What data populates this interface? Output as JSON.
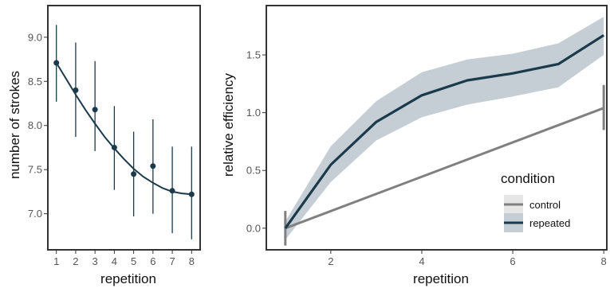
{
  "chart_data": [
    {
      "type": "scatter",
      "xlabel": "repetition",
      "ylabel": "number of strokes",
      "x_ticks": [
        "1",
        "2",
        "3",
        "4",
        "5",
        "6",
        "7",
        "8"
      ],
      "y_ticks": [
        "7.0",
        "7.5",
        "8.0",
        "8.5",
        "9.0"
      ],
      "xlim": [
        0.6,
        8.4
      ],
      "ylim": [
        6.6,
        9.35
      ],
      "points": [
        {
          "x": 1,
          "y": 8.71,
          "ymin": 8.27,
          "ymax": 9.14
        },
        {
          "x": 2,
          "y": 8.4,
          "ymin": 7.87,
          "ymax": 8.94
        },
        {
          "x": 3,
          "y": 8.18,
          "ymin": 7.71,
          "ymax": 8.73
        },
        {
          "x": 4,
          "y": 7.75,
          "ymin": 7.27,
          "ymax": 8.22
        },
        {
          "x": 5,
          "y": 7.45,
          "ymin": 6.97,
          "ymax": 7.93
        },
        {
          "x": 6,
          "y": 7.54,
          "ymin": 7.0,
          "ymax": 8.07
        },
        {
          "x": 7,
          "y": 7.26,
          "ymin": 6.78,
          "ymax": 7.76
        },
        {
          "x": 8,
          "y": 7.22,
          "ymin": 6.71,
          "ymax": 7.76
        }
      ],
      "fit_curve": [
        {
          "x": 1,
          "y": 8.71
        },
        {
          "x": 1.5,
          "y": 8.53
        },
        {
          "x": 2,
          "y": 8.35
        },
        {
          "x": 2.5,
          "y": 8.18
        },
        {
          "x": 3,
          "y": 8.02
        },
        {
          "x": 3.5,
          "y": 7.87
        },
        {
          "x": 4,
          "y": 7.74
        },
        {
          "x": 4.5,
          "y": 7.62
        },
        {
          "x": 5,
          "y": 7.51
        },
        {
          "x": 5.5,
          "y": 7.42
        },
        {
          "x": 6,
          "y": 7.35
        },
        {
          "x": 6.5,
          "y": 7.29
        },
        {
          "x": 7,
          "y": 7.25
        },
        {
          "x": 7.5,
          "y": 7.23
        },
        {
          "x": 8,
          "y": 7.22
        }
      ],
      "grid": false,
      "color": "#1b3a4b"
    },
    {
      "type": "line",
      "xlabel": "repetition",
      "ylabel": "relative efficiency",
      "x_ticks": [
        "2",
        "4",
        "6",
        "8"
      ],
      "y_ticks": [
        "0.0",
        "0.5",
        "1.0",
        "1.5"
      ],
      "xlim": [
        0.6,
        8.05
      ],
      "ylim": [
        -0.18,
        1.92
      ],
      "legend_title": "condition",
      "legend_position": "right",
      "grid": false,
      "series": [
        {
          "name": "control",
          "color": "#808080",
          "points": [
            {
              "x": 1,
              "y": 0.0
            },
            {
              "x": 8,
              "y": 1.04
            }
          ],
          "error_bars": [
            {
              "x": 1,
              "ymin": -0.15,
              "ymax": 0.15
            },
            {
              "x": 8,
              "ymin": 0.85,
              "ymax": 1.24
            }
          ]
        },
        {
          "name": "repeated",
          "color": "#1b3a4b",
          "band_color": "#c5ced5",
          "points": [
            {
              "x": 1,
              "y": 0.0,
              "lo": -0.1,
              "hi": 0.06
            },
            {
              "x": 2,
              "y": 0.55,
              "lo": 0.4,
              "hi": 0.71
            },
            {
              "x": 3,
              "y": 0.92,
              "lo": 0.76,
              "hi": 1.1
            },
            {
              "x": 4,
              "y": 1.15,
              "lo": 0.96,
              "hi": 1.35
            },
            {
              "x": 5,
              "y": 1.28,
              "lo": 1.07,
              "hi": 1.46
            },
            {
              "x": 6,
              "y": 1.34,
              "lo": 1.14,
              "hi": 1.51
            },
            {
              "x": 7,
              "y": 1.42,
              "lo": 1.22,
              "hi": 1.6
            },
            {
              "x": 8,
              "y": 1.67,
              "lo": 1.5,
              "hi": 1.83
            }
          ]
        }
      ]
    }
  ]
}
